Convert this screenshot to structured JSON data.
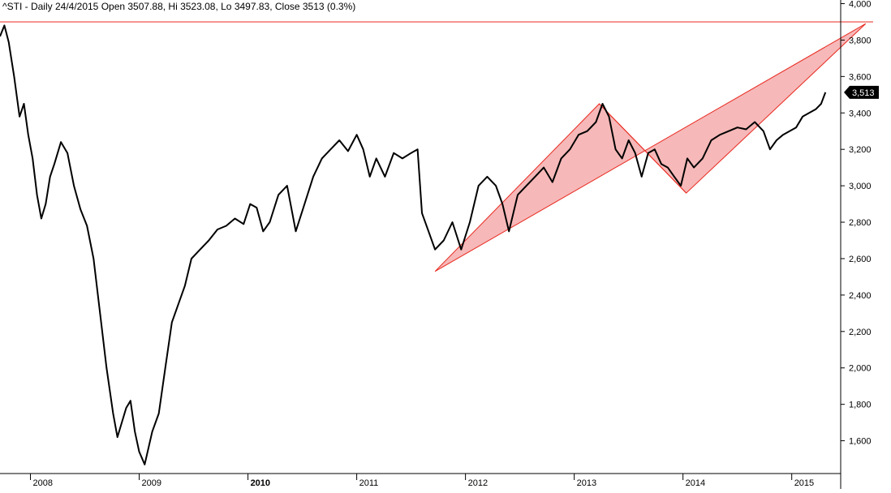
{
  "header": {
    "text": "^STI - Daily 24/4/2015 Open 3507.88, Hi 3523.08, Lo 3497.83, Close 3513 (0.3%)"
  },
  "colors": {
    "background": "#ffffff",
    "price": "#000000",
    "line": "#e8281e",
    "channel_fill": "#f6b8b8",
    "last_label_bg": "#000000",
    "last_label_text": "#ffffff"
  },
  "chart_data": {
    "type": "line",
    "title": "^STI - Daily 24/4/2015 Open 3507.88, Hi 3523.08, Lo 3497.83, Close 3513 (0.3%)",
    "xlabel": "",
    "ylabel": "",
    "xlim": [
      2007.72,
      2015.45
    ],
    "ylim": [
      1420,
      4020
    ],
    "grid": false,
    "yticks": [
      1600,
      1800,
      2000,
      2200,
      2400,
      2600,
      2800,
      3000,
      3200,
      3400,
      3600,
      3800,
      4000
    ],
    "ytick_labels": [
      "1,600",
      "1,800",
      "2,000",
      "2,200",
      "2,400",
      "2,600",
      "2,800",
      "3,000",
      "3,200",
      "3,400",
      "3,600",
      "3,800",
      "4,000"
    ],
    "xticks": [
      2008,
      2009,
      2010,
      2011,
      2012,
      2013,
      2014,
      2015
    ],
    "xtick_labels": [
      "2008",
      "2009",
      "2010",
      "2011",
      "2012",
      "2013",
      "2014",
      "2015"
    ],
    "last_value_label": "3,513",
    "last_value": 3513,
    "series": [
      {
        "values_x": [
          2007.72,
          2007.76,
          2007.8,
          2007.85,
          2007.9,
          2007.94,
          2007.98,
          2008.02,
          2008.06,
          2008.1,
          2008.14,
          2008.18,
          2008.22,
          2008.28,
          2008.34,
          2008.4,
          2008.46,
          2008.52,
          2008.58,
          2008.64,
          2008.7,
          2008.76,
          2008.8,
          2008.84,
          2008.88,
          2008.92,
          2008.96,
          2009.0,
          2009.05,
          2009.12,
          2009.18,
          2009.24,
          2009.3,
          2009.36,
          2009.42,
          2009.48,
          2009.56,
          2009.64,
          2009.72,
          2009.8,
          2009.88,
          2009.96,
          2010.02,
          2010.08,
          2010.14,
          2010.2,
          2010.28,
          2010.36,
          2010.44,
          2010.52,
          2010.6,
          2010.68,
          2010.76,
          2010.84,
          2010.92,
          2011.0,
          2011.06,
          2011.12,
          2011.18,
          2011.26,
          2011.34,
          2011.42,
          2011.5,
          2011.56,
          2011.6,
          2011.66,
          2011.72,
          2011.8,
          2011.88,
          2011.96,
          2012.04,
          2012.12,
          2012.2,
          2012.28,
          2012.34,
          2012.4,
          2012.48,
          2012.56,
          2012.64,
          2012.72,
          2012.8,
          2012.88,
          2012.96,
          2013.04,
          2013.12,
          2013.2,
          2013.26,
          2013.32,
          2013.38,
          2013.44,
          2013.5,
          2013.56,
          2013.62,
          2013.68,
          2013.74,
          2013.8,
          2013.86,
          2013.92,
          2013.98,
          2014.04,
          2014.1,
          2014.18,
          2014.26,
          2014.34,
          2014.42,
          2014.5,
          2014.58,
          2014.66,
          2014.74,
          2014.8,
          2014.86,
          2014.92,
          2014.98,
          2015.04,
          2015.1,
          2015.16,
          2015.22,
          2015.27,
          2015.31
        ],
        "values_y": [
          3820,
          3880,
          3790,
          3600,
          3380,
          3450,
          3280,
          3150,
          2950,
          2820,
          2900,
          3050,
          3120,
          3240,
          3180,
          3000,
          2870,
          2780,
          2600,
          2300,
          2000,
          1750,
          1620,
          1700,
          1780,
          1820,
          1650,
          1540,
          1470,
          1650,
          1750,
          2000,
          2250,
          2350,
          2450,
          2600,
          2650,
          2700,
          2760,
          2780,
          2820,
          2790,
          2900,
          2880,
          2750,
          2800,
          2950,
          3000,
          2750,
          2900,
          3050,
          3150,
          3200,
          3250,
          3190,
          3280,
          3200,
          3050,
          3150,
          3050,
          3180,
          3150,
          3180,
          3200,
          2850,
          2750,
          2650,
          2700,
          2800,
          2650,
          2800,
          3000,
          3050,
          3000,
          2900,
          2750,
          2950,
          3000,
          3050,
          3100,
          3020,
          3150,
          3200,
          3280,
          3300,
          3350,
          3450,
          3380,
          3200,
          3150,
          3250,
          3180,
          3050,
          3180,
          3200,
          3120,
          3100,
          3050,
          3000,
          3150,
          3100,
          3150,
          3250,
          3280,
          3300,
          3320,
          3310,
          3350,
          3300,
          3200,
          3250,
          3280,
          3300,
          3320,
          3380,
          3400,
          3420,
          3450,
          3513
        ]
      }
    ],
    "annotations": [
      {
        "type": "horizontal_line",
        "y": 3900
      },
      {
        "type": "channel",
        "points": [
          [
            2011.72,
            2530
          ],
          [
            2013.23,
            3450
          ],
          [
            2014.03,
            2960
          ],
          [
            2015.68,
            3890
          ]
        ]
      },
      {
        "type": "segment",
        "from": [
          2013.23,
          3450
        ],
        "to": [
          2014.03,
          2960
        ]
      }
    ]
  }
}
